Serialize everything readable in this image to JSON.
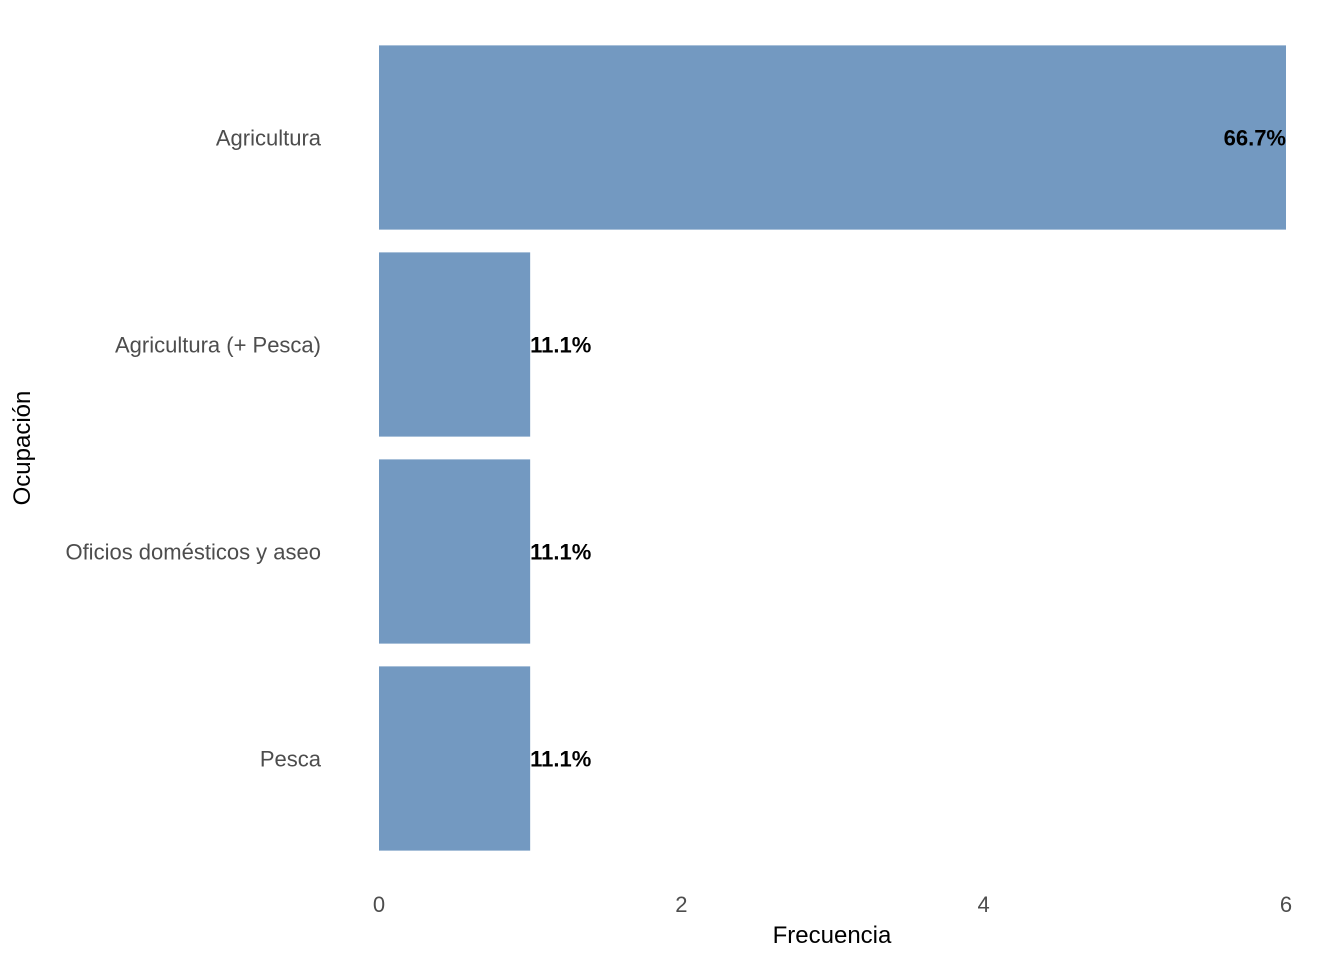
{
  "chart_data": {
    "type": "bar",
    "orientation": "horizontal",
    "title": "",
    "xlabel": "Frecuencia",
    "ylabel": "Ocupación",
    "categories": [
      "Agricultura",
      "Agricultura (+ Pesca)",
      "Oficios domésticos y aseo",
      "Pesca"
    ],
    "values": [
      6,
      1,
      1,
      1
    ],
    "data_labels": [
      "66.7%",
      "11.1%",
      "11.1%",
      "11.1%"
    ],
    "xlim": [
      0,
      6
    ],
    "xticks": [
      0,
      2,
      4,
      6
    ],
    "xtick_labels": [
      "0",
      "2",
      "4",
      "6"
    ],
    "grid": false,
    "legend": "none",
    "bar_color": "#7399c1"
  }
}
